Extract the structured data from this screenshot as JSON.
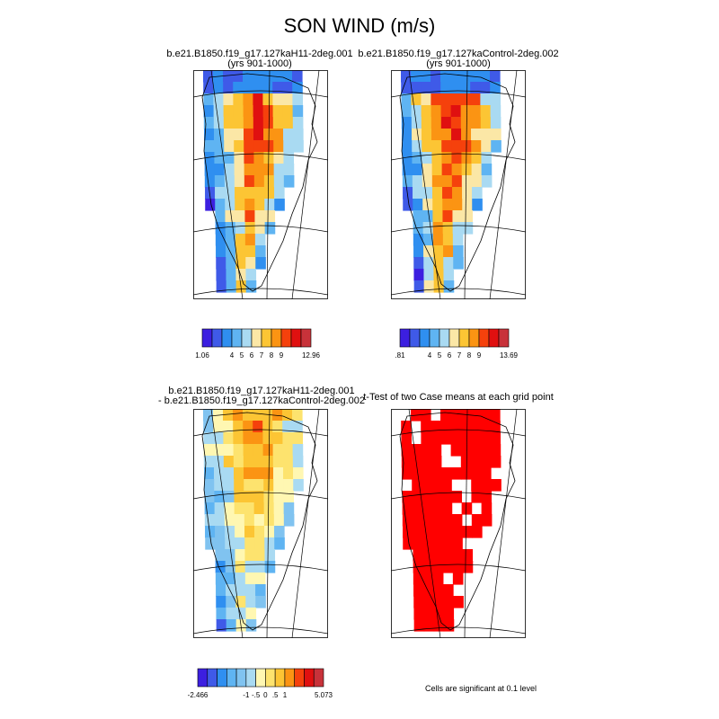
{
  "title": "SON WIND (m/s)",
  "panels": [
    {
      "line1": "b.e21.B1850.f19_g17.127kaH11-2deg.001",
      "line2": "(yrs 901-1000)"
    },
    {
      "line1": "b.e21.B1850.f19_g17.127kaControl-2deg.002",
      "line2": "(yrs 901-1000)"
    },
    {
      "line1": "b.e21.B1850.f19_g17.127kaH11-2deg.001",
      "line2": "- b.e21.B1850.f19_g17.127kaControl-2deg.002"
    },
    {
      "line1": "t-Test of two Case means at each grid point",
      "line2": ""
    }
  ],
  "colorbars": [
    {
      "colors": [
        "#3c1fe0",
        "#3f5ae8",
        "#2f8ff0",
        "#5fb4f2",
        "#a9daf2",
        "#fbe7a6",
        "#fcc534",
        "#fb9413",
        "#f5410c",
        "#e01010",
        "#c8323a"
      ],
      "labels": [
        "1.06",
        "4",
        "5",
        "6",
        "7",
        "8",
        "9",
        "12.96"
      ]
    },
    {
      "colors": [
        "#3c1fe0",
        "#3f5ae8",
        "#2f8ff0",
        "#5fb4f2",
        "#a9daf2",
        "#fbe7a6",
        "#fcc534",
        "#fb9413",
        "#f5410c",
        "#e01010",
        "#c8323a"
      ],
      "labels": [
        ".81",
        "4",
        "5",
        "6",
        "7",
        "8",
        "9",
        "13.69"
      ]
    },
    {
      "colors": [
        "#3c1fe0",
        "#3f5ae8",
        "#2f8ff0",
        "#5fb4f2",
        "#80c3f0",
        "#a9daf2",
        "#fff7b2",
        "#fde36e",
        "#fcc534",
        "#fb9413",
        "#f5410c",
        "#e01010",
        "#c8323a"
      ],
      "labels": [
        "-2.466",
        "-1",
        "-.5",
        "0",
        ".5",
        "1",
        "5.073"
      ]
    }
  ],
  "significance_note": "Cells are significant at 0.1 level",
  "significance_color": "#ff0000"
}
